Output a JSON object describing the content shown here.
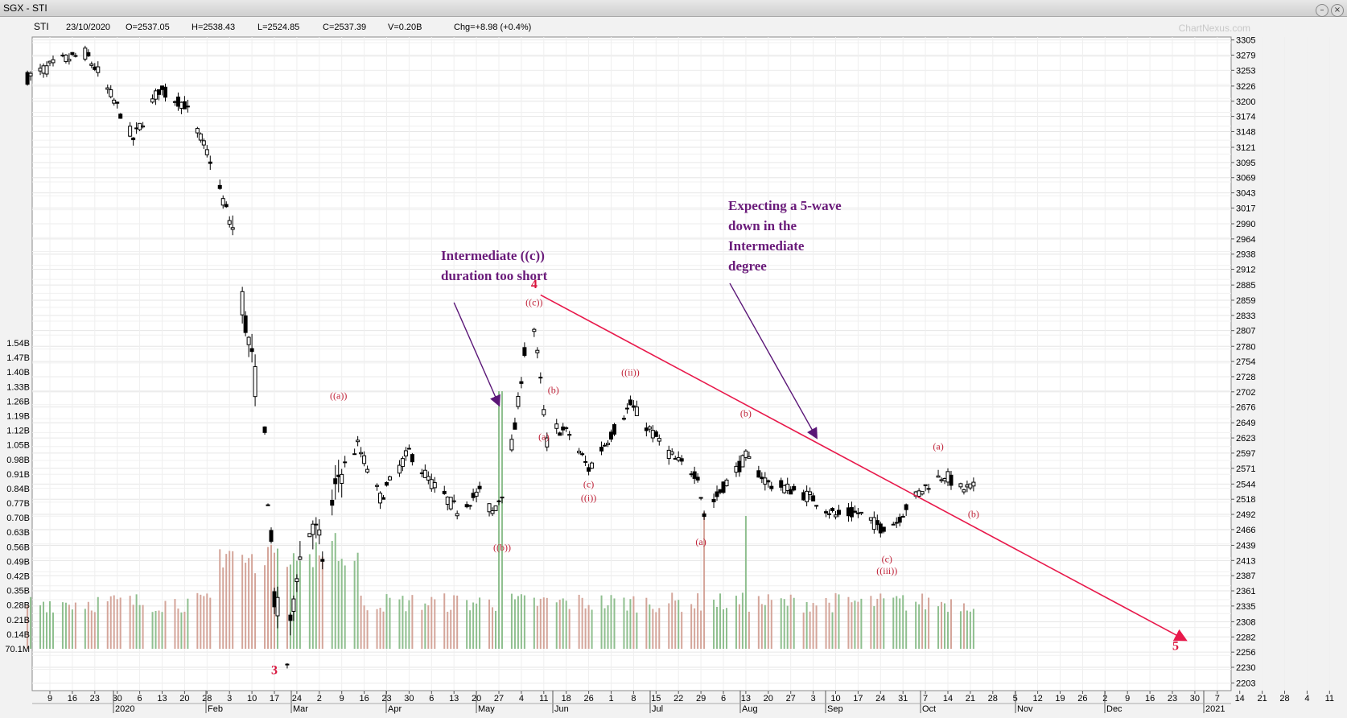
{
  "window": {
    "title": "SGX - STI",
    "buttons": [
      "minimize",
      "close"
    ]
  },
  "header": {
    "symbol": "STI",
    "date": "23/10/2020",
    "open": "O=2537.05",
    "high": "H=2538.43",
    "low": "L=2524.85",
    "close": "C=2537.39",
    "volume": "V=0.20B",
    "change": "Chg=+8.98 (+0.4%)",
    "watermark": "ChartNexus.com"
  },
  "annotations": {
    "a1": [
      "Intermediate ((c))",
      "duration too short"
    ],
    "a2": [
      "Expecting a 5-wave",
      "down in the",
      "Intermediate",
      "degree"
    ]
  },
  "wave_labels": [
    {
      "text": "3",
      "bold": true,
      "date": "2020-03-19",
      "price": 2218
    },
    {
      "text": "((a))",
      "date": "2020-04-08",
      "price": 2690
    },
    {
      "text": "((b))",
      "date": "2020-05-29",
      "price": 2430
    },
    {
      "text": "((c))",
      "date": "2020-06-08",
      "price": 2850
    },
    {
      "text": "4",
      "bold": true,
      "date": "2020-06-08",
      "price": 2880
    },
    {
      "text": "(a)",
      "date": "2020-06-11",
      "price": 2620
    },
    {
      "text": "(b)",
      "date": "2020-06-14",
      "price": 2700
    },
    {
      "text": "(c)",
      "date": "2020-06-25",
      "price": 2538
    },
    {
      "text": "((i))",
      "date": "2020-06-25",
      "price": 2515
    },
    {
      "text": "((ii))",
      "date": "2020-07-08",
      "price": 2730
    },
    {
      "text": "(a)",
      "date": "2020-07-30",
      "price": 2440
    },
    {
      "text": "(b)",
      "date": "2020-08-13",
      "price": 2660
    },
    {
      "text": "(c)",
      "date": "2020-09-26",
      "price": 2410
    },
    {
      "text": "((iii))",
      "date": "2020-09-26",
      "price": 2390
    },
    {
      "text": "(a)",
      "date": "2020-10-12",
      "price": 2603
    },
    {
      "text": "(b)",
      "date": "2020-10-23",
      "price": 2487
    },
    {
      "text": "5",
      "bold": true,
      "date": "2020-12-25",
      "price": 2260
    }
  ],
  "chart_data": {
    "type": "candlestick",
    "volume_type": "bar",
    "price_axis": {
      "min": 2190,
      "max": 3310,
      "ticks": [
        2203,
        2230,
        2256,
        2282,
        2308,
        2335,
        2361,
        2387,
        2413,
        2439,
        2466,
        2492,
        2518,
        2544,
        2571,
        2597,
        2623,
        2649,
        2676,
        2702,
        2728,
        2754,
        2780,
        2807,
        2833,
        2859,
        2885,
        2912,
        2938,
        2964,
        2990,
        3017,
        3043,
        3069,
        3095,
        3121,
        3148,
        3174,
        3200,
        3226,
        3253,
        3279,
        3305
      ]
    },
    "volume_axis": {
      "ticks": [
        "70.1M",
        "0.14B",
        "0.21B",
        "0.28B",
        "0.35B",
        "0.42B",
        "0.49B",
        "0.56B",
        "0.63B",
        "0.70B",
        "0.77B",
        "0.84B",
        "0.91B",
        "0.98B",
        "1.05B",
        "1.12B",
        "1.19B",
        "1.26B",
        "1.33B",
        "1.40B",
        "1.47B",
        "1.54B"
      ]
    },
    "x_axis": {
      "ticks": [
        "9",
        "16",
        "23",
        "30",
        "6",
        "13",
        "20",
        "28",
        "3",
        "10",
        "17",
        "24",
        "2",
        "9",
        "16",
        "23",
        "30",
        "6",
        "13",
        "20",
        "27",
        "4",
        "11",
        "18",
        "26",
        "1",
        "8",
        "15",
        "22",
        "29",
        "6",
        "13",
        "20",
        "27",
        "3",
        "10",
        "17",
        "24",
        "31",
        "7",
        "14",
        "21",
        "28",
        "5",
        "12",
        "19",
        "26",
        "2",
        "9",
        "16",
        "23",
        "30",
        "7",
        "14",
        "21",
        "28",
        "4",
        "11"
      ],
      "months": [
        "2020",
        "Feb",
        "Mar",
        "Apr",
        "May",
        "Jun",
        "Jul",
        "Aug",
        "Sep",
        "Oct",
        "Nov",
        "Dec",
        "2021"
      ]
    },
    "keypoints": [
      {
        "date": "2020-01-02",
        "close": 3240
      },
      {
        "date": "2020-01-13",
        "close": 3270
      },
      {
        "date": "2020-01-20",
        "close": 3282
      },
      {
        "date": "2020-01-24",
        "close": 3250
      },
      {
        "date": "2020-01-31",
        "close": 3180
      },
      {
        "date": "2020-02-04",
        "close": 3135
      },
      {
        "date": "2020-02-12",
        "close": 3220
      },
      {
        "date": "2020-02-20",
        "close": 3195
      },
      {
        "date": "2020-02-28",
        "close": 3100
      },
      {
        "date": "2020-03-03",
        "close": 3030
      },
      {
        "date": "2020-03-06",
        "close": 2980
      },
      {
        "date": "2020-03-10",
        "close": 2820
      },
      {
        "date": "2020-03-13",
        "close": 2720
      },
      {
        "date": "2020-03-16",
        "close": 2620
      },
      {
        "date": "2020-03-19",
        "close": 2350
      },
      {
        "date": "2020-03-23",
        "close": 2240
      },
      {
        "date": "2020-03-26",
        "close": 2400
      },
      {
        "date": "2020-03-31",
        "close": 2480
      },
      {
        "date": "2020-04-03",
        "close": 2420
      },
      {
        "date": "2020-04-08",
        "close": 2560
      },
      {
        "date": "2020-04-14",
        "close": 2610
      },
      {
        "date": "2020-04-21",
        "close": 2520
      },
      {
        "date": "2020-04-30",
        "close": 2600
      },
      {
        "date": "2020-05-07",
        "close": 2545
      },
      {
        "date": "2020-05-15",
        "close": 2500
      },
      {
        "date": "2020-05-22",
        "close": 2530
      },
      {
        "date": "2020-05-26",
        "close": 2495
      },
      {
        "date": "2020-05-29",
        "close": 2530
      },
      {
        "date": "2020-06-02",
        "close": 2640
      },
      {
        "date": "2020-06-05",
        "close": 2770
      },
      {
        "date": "2020-06-08",
        "close": 2810
      },
      {
        "date": "2020-06-10",
        "close": 2720
      },
      {
        "date": "2020-06-12",
        "close": 2615
      },
      {
        "date": "2020-06-15",
        "close": 2640
      },
      {
        "date": "2020-06-19",
        "close": 2630
      },
      {
        "date": "2020-06-25",
        "close": 2570
      },
      {
        "date": "2020-07-02",
        "close": 2630
      },
      {
        "date": "2020-07-08",
        "close": 2680
      },
      {
        "date": "2020-07-15",
        "close": 2630
      },
      {
        "date": "2020-07-22",
        "close": 2585
      },
      {
        "date": "2020-07-29",
        "close": 2560
      },
      {
        "date": "2020-07-31",
        "close": 2490
      },
      {
        "date": "2020-08-06",
        "close": 2540
      },
      {
        "date": "2020-08-13",
        "close": 2590
      },
      {
        "date": "2020-08-20",
        "close": 2545
      },
      {
        "date": "2020-08-27",
        "close": 2535
      },
      {
        "date": "2020-09-03",
        "close": 2520
      },
      {
        "date": "2020-09-10",
        "close": 2490
      },
      {
        "date": "2020-09-17",
        "close": 2495
      },
      {
        "date": "2020-09-24",
        "close": 2470
      },
      {
        "date": "2020-09-29",
        "close": 2480
      },
      {
        "date": "2020-10-02",
        "close": 2505
      },
      {
        "date": "2020-10-09",
        "close": 2545
      },
      {
        "date": "2020-10-14",
        "close": 2560
      },
      {
        "date": "2020-10-19",
        "close": 2535
      },
      {
        "date": "2020-10-23",
        "close": 2537
      }
    ],
    "trendline": {
      "from": {
        "date": "2020-06-10",
        "price": 2868
      },
      "to": {
        "date": "2020-12-28",
        "price": 2277
      }
    },
    "arrows": [
      {
        "from": {
          "date": "2020-05-14",
          "price": 2855
        },
        "to": {
          "date": "2020-05-28",
          "price": 2680
        }
      },
      {
        "from": {
          "date": "2020-08-08",
          "price": 2888
        },
        "to": {
          "date": "2020-09-04",
          "price": 2624
        }
      }
    ]
  }
}
